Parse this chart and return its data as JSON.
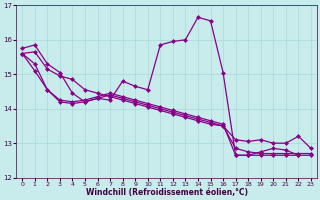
{
  "xlabel": "Windchill (Refroidissement éolien,°C)",
  "background_color": "#c8ecec",
  "line_color": "#880088",
  "grid_color": "#aad8d8",
  "xlim": [
    -0.5,
    23.5
  ],
  "ylim": [
    12,
    17
  ],
  "yticks": [
    12,
    13,
    14,
    15,
    16,
    17
  ],
  "xticks": [
    0,
    1,
    2,
    3,
    4,
    5,
    6,
    7,
    8,
    9,
    10,
    11,
    12,
    13,
    14,
    15,
    16,
    17,
    18,
    19,
    20,
    21,
    22,
    23
  ],
  "series": [
    [
      15.75,
      15.85,
      15.3,
      15.05,
      14.45,
      14.2,
      14.3,
      14.25,
      14.8,
      14.65,
      14.55,
      15.85,
      15.95,
      16.0,
      16.65,
      16.55,
      15.05,
      12.65,
      12.65,
      12.75,
      12.85,
      12.8,
      12.65,
      null
    ],
    [
      15.6,
      15.65,
      15.15,
      14.95,
      14.85,
      14.55,
      14.45,
      14.35,
      14.25,
      14.15,
      14.05,
      13.95,
      13.85,
      13.75,
      13.65,
      13.55,
      13.5,
      12.85,
      12.75,
      12.7,
      12.7,
      12.7,
      12.7,
      12.7
    ],
    [
      15.6,
      15.3,
      14.55,
      14.25,
      14.2,
      14.25,
      14.35,
      14.45,
      14.35,
      14.25,
      14.15,
      14.05,
      13.95,
      13.85,
      13.75,
      13.65,
      13.55,
      12.65,
      12.65,
      12.65,
      12.65,
      12.65,
      12.65,
      12.65
    ],
    [
      15.6,
      15.1,
      14.55,
      14.2,
      14.15,
      14.2,
      14.3,
      14.4,
      14.3,
      14.2,
      14.1,
      14.0,
      13.9,
      13.8,
      13.7,
      13.6,
      13.5,
      13.1,
      13.05,
      13.1,
      13.0,
      13.0,
      13.2,
      12.85
    ]
  ]
}
